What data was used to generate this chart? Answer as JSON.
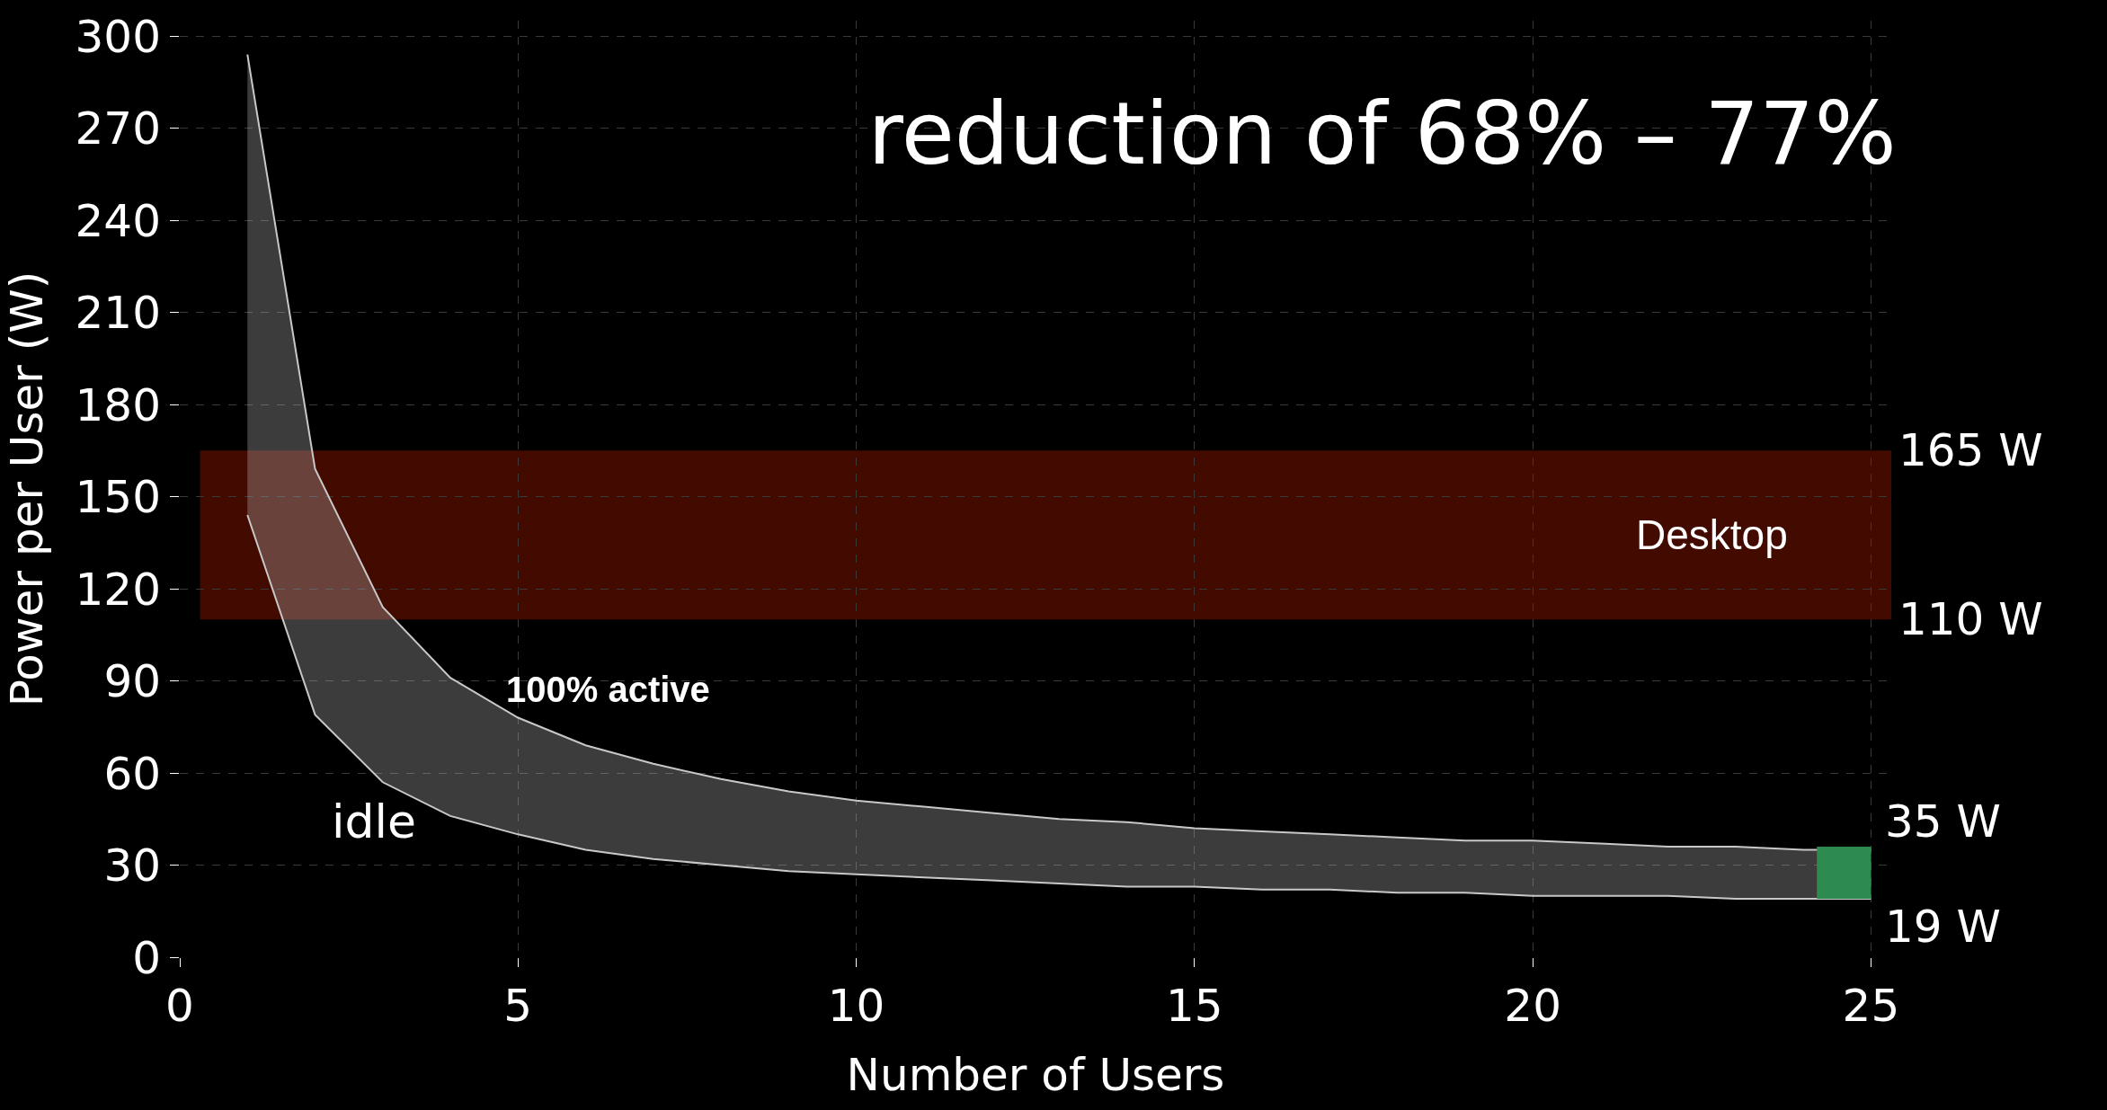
{
  "chart_data": {
    "type": "area",
    "title": "reduction of 68% – 77%",
    "xlabel": "Number of Users",
    "ylabel": "Power per User (W)",
    "x": [
      1,
      2,
      3,
      4,
      5,
      6,
      7,
      8,
      9,
      10,
      11,
      12,
      13,
      14,
      15,
      16,
      17,
      18,
      19,
      20,
      21,
      22,
      23,
      24,
      25
    ],
    "series": [
      {
        "type": "line",
        "name": "idle",
        "color": "#c8c8c8",
        "values": [
          144,
          79,
          57,
          46,
          40,
          35,
          32,
          30,
          28,
          27,
          26,
          25,
          24,
          23,
          23,
          22,
          22,
          21,
          21,
          20,
          20,
          20,
          19,
          19,
          19
        ],
        "value_labels": [
          null,
          null,
          null,
          null,
          null,
          null,
          null,
          null,
          null,
          null,
          null,
          null,
          null,
          null,
          null,
          null,
          null,
          null,
          null,
          null,
          null,
          null,
          null,
          null,
          "19 W"
        ]
      },
      {
        "name": "100% active",
        "color": "#c8c8c8",
        "values": [
          294,
          159,
          114,
          91,
          78,
          69,
          63,
          58,
          54,
          51,
          49,
          47,
          45,
          44,
          42,
          41,
          40,
          39,
          38,
          38,
          37,
          36,
          36,
          35,
          35
        ],
        "value_labels": [
          null,
          null,
          null,
          null,
          null,
          null,
          null,
          null,
          null,
          null,
          null,
          null,
          null,
          null,
          null,
          null,
          null,
          null,
          null,
          null,
          null,
          null,
          null,
          null,
          "35 W"
        ]
      },
      {
        "type": "bar",
        "color": "#2e8b4f",
        "x": [
          24.6
        ],
        "values": [
          17
        ],
        "base": [
          19
        ]
      }
    ],
    "bands": [
      {
        "axis": "y",
        "from": 110,
        "to": 165,
        "label": "Desktop",
        "color": "#8b1400"
      }
    ],
    "annotations": [
      {
        "text": "165 W",
        "x": 25.3,
        "y": 165
      },
      {
        "text": "110 W",
        "x": 25.3,
        "y": 110
      }
    ],
    "xlim": [
      0,
      25.3
    ],
    "ylim": [
      0,
      305
    ],
    "xticks": [
      0,
      5,
      10,
      15,
      20,
      25
    ],
    "yticks": [
      0,
      30,
      60,
      90,
      120,
      150,
      180,
      210,
      240,
      270,
      300
    ],
    "grid": true
  }
}
